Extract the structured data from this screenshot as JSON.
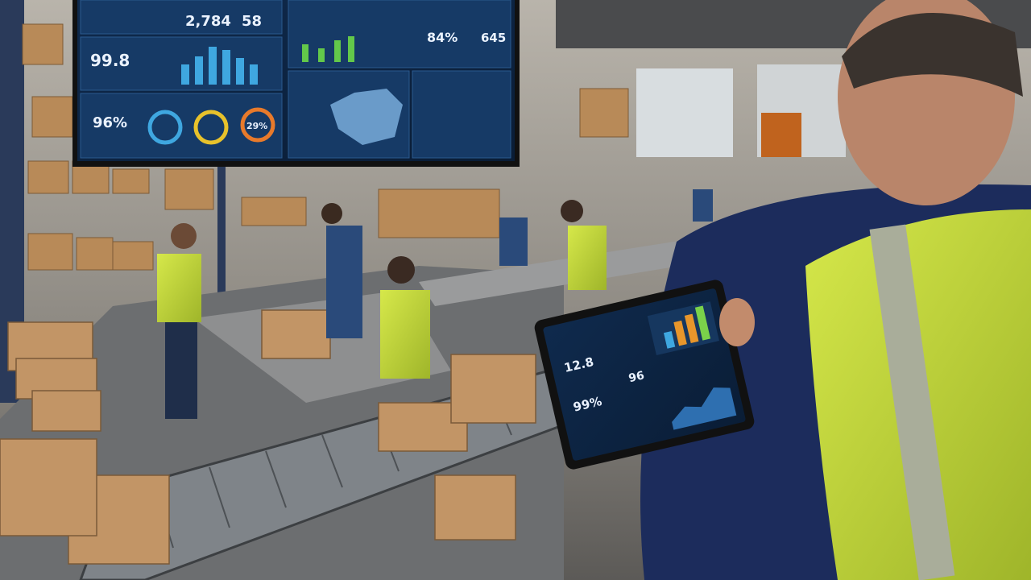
{
  "wall_screen": {
    "kpis": [
      "2,784",
      "58",
      "99.8",
      "96%",
      "29%",
      "84%",
      "645"
    ]
  },
  "tablet": {
    "kpis": [
      "12.8",
      "99%",
      "96"
    ]
  }
}
